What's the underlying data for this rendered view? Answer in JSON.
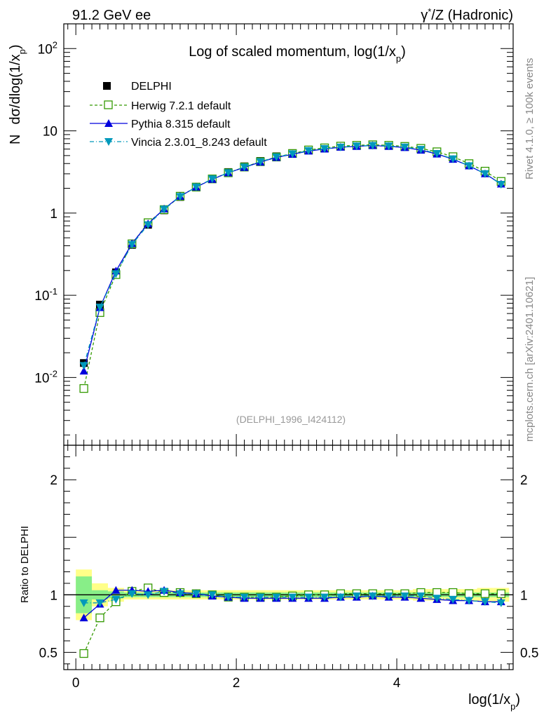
{
  "header": {
    "left": "91.2 GeV ee",
    "right_prefix": "γ",
    "right_sup": "*",
    "right_suffix": "/Z (Hadronic)"
  },
  "side_labels": {
    "rivet": "Rivet 4.1.0, ≥ 100k events",
    "mcplots": "mcplots.cern.ch [arXiv:2401.10621]"
  },
  "chart_data": {
    "type": "line",
    "title": "Log of scaled momentum, log(1/x",
    "title_sub": "p",
    "title_tail": ")",
    "ylabel_n": "N",
    "ylabel_main": "dσ/dlog(1/x",
    "ylabel_sub": "p",
    "ylabel_tail": ")",
    "xlabel": "log(1/x",
    "xlabel_sub": "p",
    "xlabel_tail": ")",
    "ratio_ylabel": "Ratio to DELPHI",
    "watermark": "(DELPHI_1996_I424112)",
    "xlim": [
      -0.15,
      5.45
    ],
    "ylim_log": [
      0.0015,
      200
    ],
    "ratio_ylim": [
      0.35,
      2.3
    ],
    "x_ticks": [
      {
        "v": 0,
        "label": "0"
      },
      {
        "v": 2,
        "label": "2"
      },
      {
        "v": 4,
        "label": "4"
      }
    ],
    "y_ticks": [
      {
        "v": 0.01,
        "base": "10",
        "exp": "-2"
      },
      {
        "v": 0.1,
        "base": "10",
        "exp": "-1"
      },
      {
        "v": 1,
        "base": "1",
        "exp": ""
      },
      {
        "v": 10,
        "base": "10",
        "exp": ""
      },
      {
        "v": 100,
        "base": "10",
        "exp": "2"
      }
    ],
    "ratio_ticks": [
      {
        "v": 0.5,
        "label": "0.5"
      },
      {
        "v": 1,
        "label": "1"
      },
      {
        "v": 2,
        "label": "2"
      }
    ],
    "x": [
      0.1,
      0.3,
      0.5,
      0.7,
      0.9,
      1.1,
      1.3,
      1.5,
      1.7,
      1.9,
      2.1,
      2.3,
      2.5,
      2.7,
      2.9,
      3.1,
      3.3,
      3.5,
      3.7,
      3.9,
      4.1,
      4.3,
      4.5,
      4.7,
      4.9,
      5.1,
      5.3
    ],
    "data": {
      "name": "DELPHI",
      "values": [
        0.015,
        0.077,
        0.19,
        0.41,
        0.72,
        1.08,
        1.57,
        2.05,
        2.6,
        3.15,
        3.7,
        4.3,
        4.9,
        5.35,
        5.85,
        6.2,
        6.45,
        6.6,
        6.7,
        6.6,
        6.4,
        6.0,
        5.45,
        4.75,
        3.95,
        3.2,
        2.4
      ],
      "band_inner": [
        0.16,
        0.04,
        0.03,
        0.02,
        0.02,
        0.02,
        0.02,
        0.02,
        0.02,
        0.02,
        0.02,
        0.02,
        0.02,
        0.02,
        0.02,
        0.02,
        0.02,
        0.02,
        0.02,
        0.02,
        0.02,
        0.02,
        0.02,
        0.02,
        0.02,
        0.02,
        0.02
      ],
      "band_outer": [
        0.22,
        0.1,
        0.06,
        0.04,
        0.04,
        0.04,
        0.04,
        0.04,
        0.04,
        0.04,
        0.04,
        0.04,
        0.04,
        0.04,
        0.04,
        0.04,
        0.04,
        0.04,
        0.04,
        0.04,
        0.04,
        0.05,
        0.05,
        0.05,
        0.05,
        0.06,
        0.06
      ]
    },
    "series": [
      {
        "name": "Herwig 7.2.1 default",
        "color": "#339900",
        "marker": "open-square",
        "dash": "4,3",
        "ratio": [
          0.49,
          0.8,
          0.94,
          1.03,
          1.06,
          1.02,
          1.02,
          1.01,
          1.0,
          0.98,
          0.98,
          0.98,
          0.98,
          0.99,
          1.0,
          1.0,
          1.01,
          1.01,
          1.01,
          1.01,
          1.01,
          1.02,
          1.02,
          1.02,
          1.01,
          1.01,
          1.01
        ]
      },
      {
        "name": "Pythia 8.315 default",
        "color": "#0000dd",
        "marker": "up-triangle",
        "dash": "",
        "ratio": [
          0.8,
          0.92,
          1.04,
          1.04,
          1.03,
          1.04,
          1.02,
          1.01,
          0.99,
          0.98,
          0.97,
          0.97,
          0.97,
          0.97,
          0.97,
          0.97,
          0.98,
          0.98,
          0.99,
          0.98,
          0.98,
          0.97,
          0.96,
          0.95,
          0.95,
          0.94,
          0.94
        ]
      },
      {
        "name": "Vincia 2.3.01_8.243 default",
        "color": "#0099bb",
        "marker": "down-triangle",
        "dash": "6,3,1,3",
        "ratio": [
          0.93,
          0.93,
          0.96,
          1.01,
          1.0,
          1.03,
          1.01,
          1.01,
          1.0,
          0.98,
          0.98,
          0.98,
          0.98,
          0.98,
          0.98,
          0.98,
          0.98,
          0.99,
          0.99,
          0.99,
          0.99,
          0.99,
          0.97,
          0.96,
          0.95,
          0.94,
          0.93
        ]
      }
    ]
  }
}
